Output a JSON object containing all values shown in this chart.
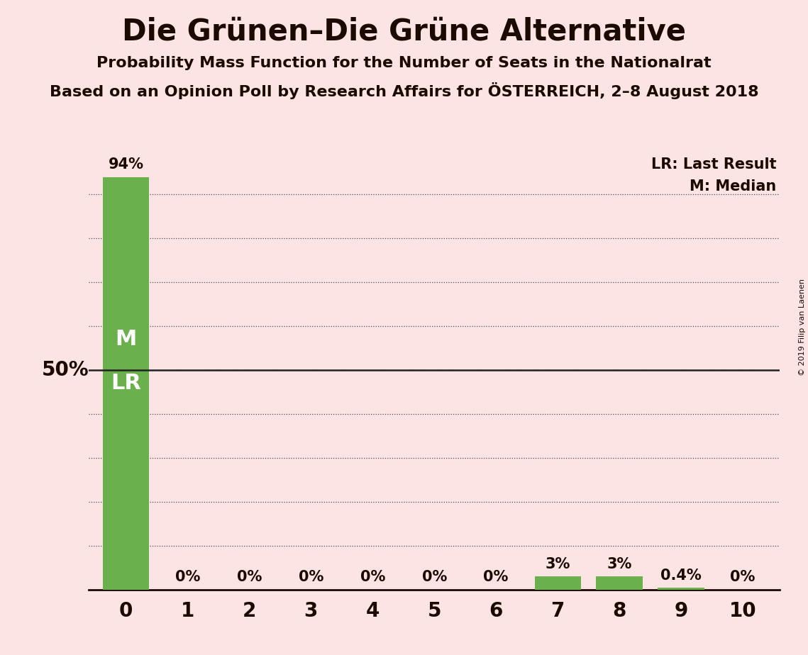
{
  "title": "Die Grünen–Die Grüne Alternative",
  "subtitle": "Probability Mass Function for the Number of Seats in the Nationalrat",
  "subsubtitle": "Based on an Opinion Poll by Research Affairs for ÖSTERREICH, 2–8 August 2018",
  "copyright": "© 2019 Filip van Laenen",
  "ylabel_label": "50%",
  "ylabel_value": 50,
  "seats": [
    0,
    1,
    2,
    3,
    4,
    5,
    6,
    7,
    8,
    9,
    10
  ],
  "probabilities": [
    94,
    0,
    0,
    0,
    0,
    0,
    0,
    3,
    3,
    0.4,
    0
  ],
  "bar_labels": [
    "94%",
    "0%",
    "0%",
    "0%",
    "0%",
    "0%",
    "0%",
    "3%",
    "3%",
    "0.4%",
    "0%"
  ],
  "bar_color": "#6ab04c",
  "background_color": "#fce4e4",
  "text_color": "#1a0a00",
  "gridline_color": "#222222",
  "ylim": [
    0,
    100
  ],
  "yticks": [
    10,
    20,
    30,
    40,
    50,
    60,
    70,
    80,
    90
  ],
  "legend_lr": "LR: Last Result",
  "legend_m": "M: Median",
  "title_fontsize": 30,
  "subtitle_fontsize": 16,
  "subsubtitle_fontsize": 16,
  "bar_label_fontsize": 15,
  "ml_fontsize": 22,
  "xtick_fontsize": 20,
  "ylabel_fontsize": 20,
  "legend_fontsize": 15
}
